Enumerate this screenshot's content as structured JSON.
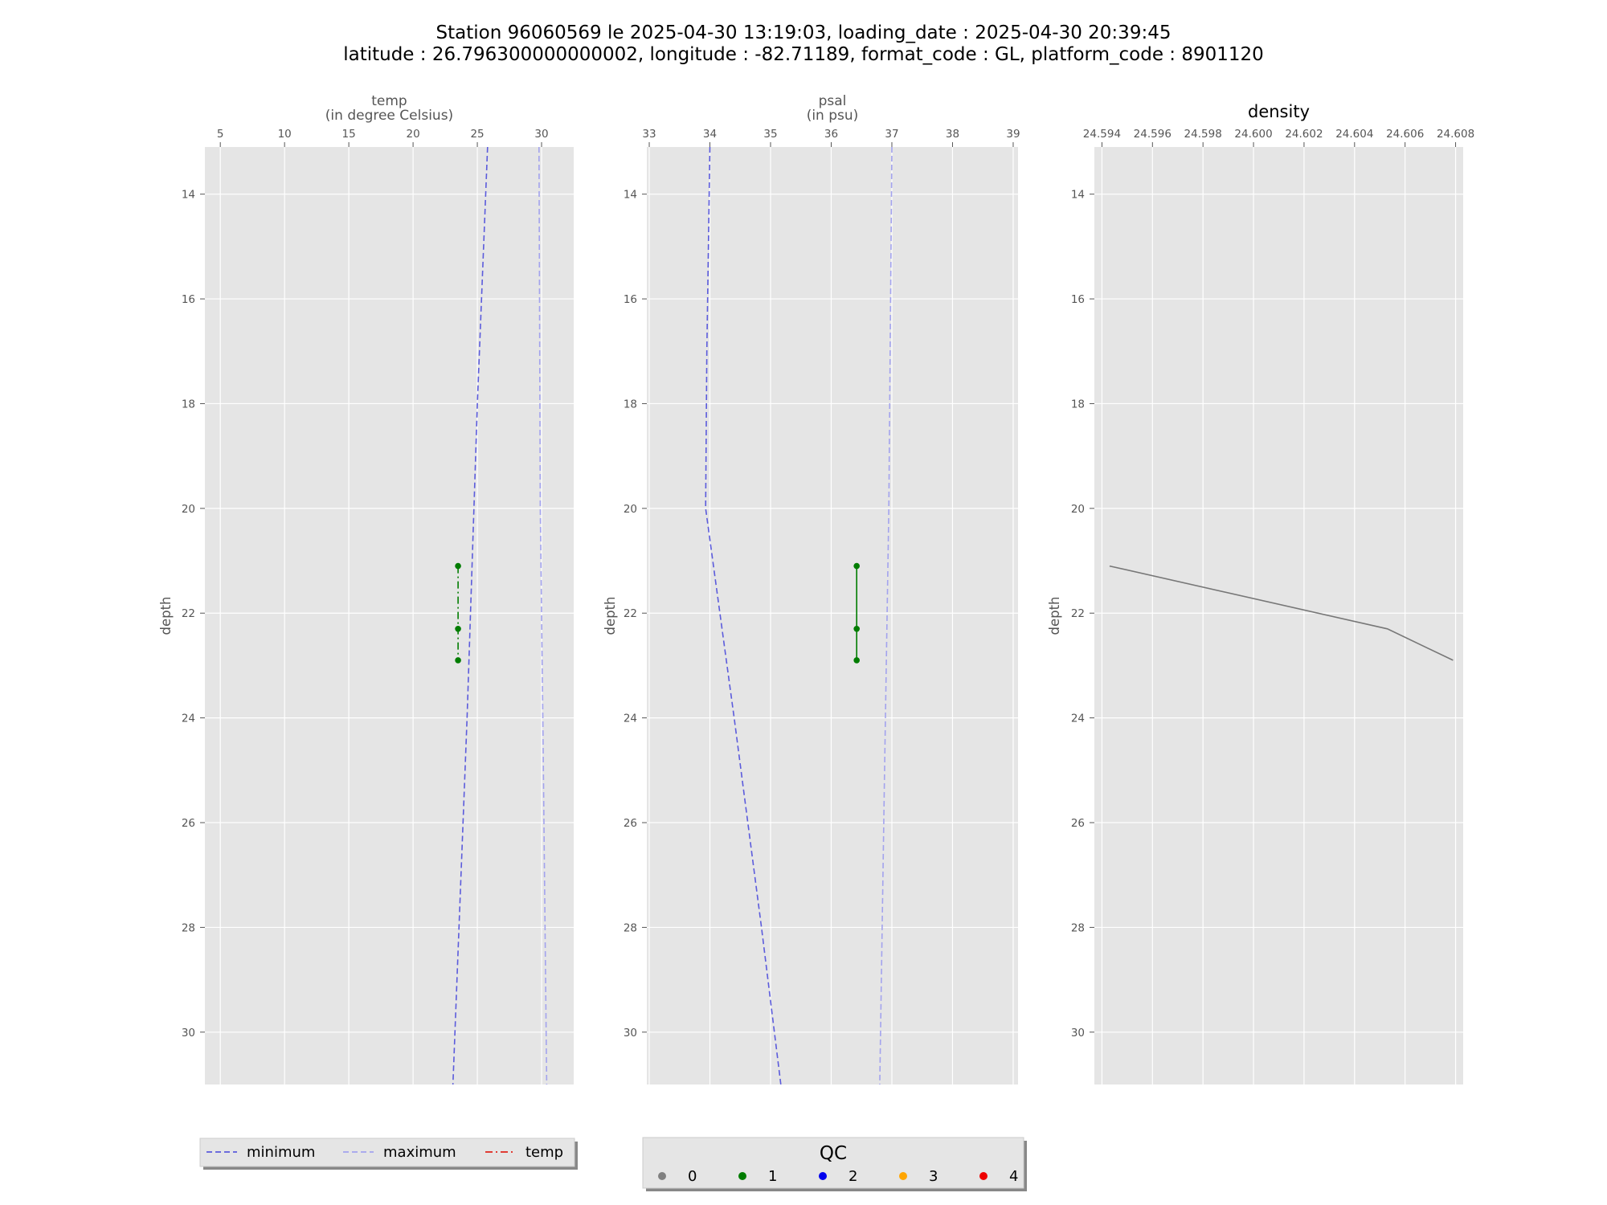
{
  "figure": {
    "title_line1": "Station 96060569 le 2025-04-30 13:19:03, loading_date : 2025-04-30 20:39:45",
    "title_line2": "latitude : 26.796300000000002, longitude : -82.71189, format_code : GL, platform_code : 8901120"
  },
  "colors": {
    "minimum": "#5b5bdc",
    "maximum": "#a3a3ee",
    "temp": "#e0241b",
    "qc0": "#808080",
    "qc1": "#007c00",
    "qc2": "#0000ee",
    "qc3": "#ffa500",
    "qc4": "#ee0000",
    "density": "#777777",
    "axes_bg": "#e5e5e5",
    "grid": "#ffffff"
  },
  "chart_data": [
    {
      "type": "line",
      "title": "temp\n(in degree Celsius)",
      "title_lines": [
        "temp",
        "(in degree Celsius)"
      ],
      "xlabel": "",
      "ylabel": "depth",
      "xlim": [
        3.8,
        32.5
      ],
      "ylim": [
        31,
        13.1
      ],
      "y_inverted": true,
      "xticks": [
        5,
        10,
        15,
        20,
        25,
        30
      ],
      "yticks": [
        14,
        16,
        18,
        20,
        22,
        24,
        26,
        28,
        30
      ],
      "grid": true,
      "series": [
        {
          "name": "minimum",
          "style": "dashed",
          "color": "#5b5bdc",
          "x": [
            25.8,
            25.0,
            24.2,
            23.1
          ],
          "y": [
            13.1,
            18.0,
            24.0,
            31.0
          ]
        },
        {
          "name": "maximum",
          "style": "dashed",
          "color": "#a3a3ee",
          "x": [
            29.8,
            29.9,
            30.1,
            30.4
          ],
          "y": [
            13.1,
            20.0,
            24.0,
            31.0
          ]
        },
        {
          "name": "temp",
          "style": "dashdot",
          "color": "#007c00",
          "markers": true,
          "qc": 1,
          "x": [
            23.5,
            23.5,
            23.5
          ],
          "y": [
            21.1,
            22.3,
            22.9
          ]
        }
      ]
    },
    {
      "type": "line",
      "title": "psal\n(in psu)",
      "title_lines": [
        "psal",
        "(in psu)"
      ],
      "xlabel": "",
      "ylabel": "depth",
      "xlim": [
        32.96,
        39.08
      ],
      "ylim": [
        31,
        13.1
      ],
      "y_inverted": true,
      "xticks": [
        33,
        34,
        35,
        36,
        37,
        38,
        39
      ],
      "yticks": [
        14,
        16,
        18,
        20,
        22,
        24,
        26,
        28,
        30
      ],
      "grid": true,
      "series": [
        {
          "name": "minimum",
          "style": "dashed",
          "color": "#5b5bdc",
          "x": [
            34.0,
            33.95,
            33.93,
            34.4,
            34.85,
            35.17
          ],
          "y": [
            13.1,
            17.0,
            20.0,
            24.0,
            28.0,
            31.0
          ]
        },
        {
          "name": "maximum",
          "style": "dashed",
          "color": "#a3a3ee",
          "x": [
            37.0,
            36.95,
            36.88,
            36.8
          ],
          "y": [
            13.1,
            20.0,
            25.0,
            31.0
          ]
        },
        {
          "name": "psal",
          "style": "solid",
          "color": "#007c00",
          "markers": true,
          "qc": 1,
          "x": [
            36.42,
            36.42,
            36.42
          ],
          "y": [
            21.1,
            22.3,
            22.9
          ]
        }
      ]
    },
    {
      "type": "line",
      "title": "density",
      "xlabel": "",
      "ylabel": "depth",
      "xlim": [
        24.5937,
        24.6083
      ],
      "ylim": [
        31,
        13.1
      ],
      "y_inverted": true,
      "xticks": [
        24.594,
        24.596,
        24.598,
        24.6,
        24.602,
        24.604,
        24.606,
        24.608
      ],
      "xtick_labels": [
        "24.594",
        "24.596",
        "24.598",
        "24.600",
        "24.602",
        "24.604",
        "24.606",
        "24.608"
      ],
      "yticks": [
        14,
        16,
        18,
        20,
        22,
        24,
        26,
        28,
        30
      ],
      "grid": true,
      "series": [
        {
          "style": "solid",
          "color": "#777777",
          "x": [
            24.5943,
            24.6053,
            24.6079
          ],
          "y": [
            21.1,
            22.3,
            22.9
          ]
        }
      ]
    }
  ],
  "legend_lines": {
    "items": [
      {
        "label": "minimum",
        "style": "dashed",
        "color": "#5b5bdc"
      },
      {
        "label": "maximum",
        "style": "dashed",
        "color": "#a3a3ee"
      },
      {
        "label": "temp",
        "style": "dashdot",
        "color": "#e0241b"
      }
    ]
  },
  "legend_qc": {
    "title": "QC",
    "items": [
      {
        "label": "0",
        "color": "#808080"
      },
      {
        "label": "1",
        "color": "#007c00"
      },
      {
        "label": "2",
        "color": "#0000ee"
      },
      {
        "label": "3",
        "color": "#ffa500"
      },
      {
        "label": "4",
        "color": "#ee0000"
      }
    ]
  }
}
